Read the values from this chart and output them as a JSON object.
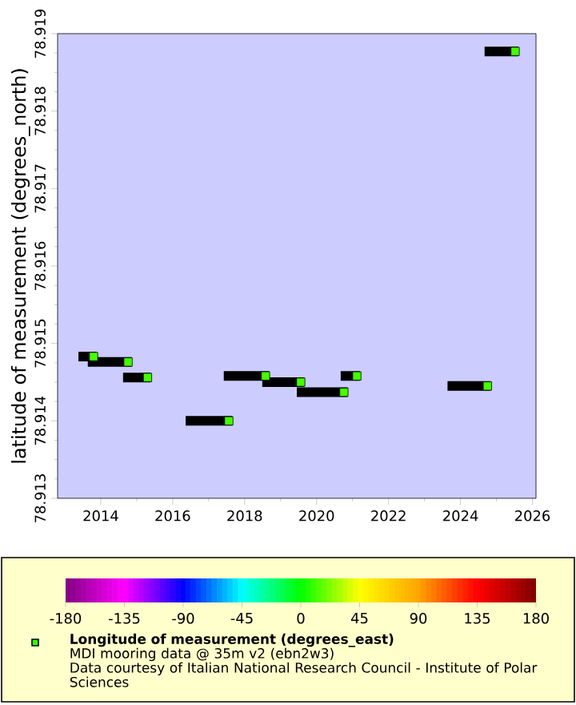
{
  "chart_data": {
    "type": "scatter",
    "ylabel": "latitude of measurement (degrees_north)",
    "clabel": "Longitude of measurement (degrees_east)",
    "annotations": [
      "MDI mooring data @ 35m v2 (ebn2w3)",
      "Data courtesy of Italian National Research Council - Institute of Polar Sciences"
    ],
    "xlim": [
      2012.8,
      2026.1
    ],
    "ylim": [
      78.913,
      78.919
    ],
    "xticks": [
      2014,
      2016,
      2018,
      2020,
      2022,
      2024,
      2026
    ],
    "yticks": [
      78.913,
      78.914,
      78.915,
      78.916,
      78.917,
      78.918,
      78.919
    ],
    "clim": [
      -180,
      180
    ],
    "cticks": [
      -180,
      -135,
      -90,
      -45,
      0,
      45,
      90,
      135,
      180
    ],
    "series": [
      {
        "type": "line",
        "color": "#000000",
        "x": [
          2013.38,
          2013.88
        ],
        "values": [
          78.91483,
          78.91483
        ]
      },
      {
        "type": "line",
        "color": "#000000",
        "x": [
          2013.64,
          2014.86
        ],
        "values": [
          78.91476,
          78.91476
        ]
      },
      {
        "type": "line",
        "color": "#000000",
        "x": [
          2014.62,
          2015.39
        ],
        "values": [
          78.91456,
          78.91456
        ]
      },
      {
        "type": "line",
        "color": "#000000",
        "x": [
          2016.36,
          2017.66
        ],
        "values": [
          78.914,
          78.914
        ]
      },
      {
        "type": "line",
        "color": "#000000",
        "x": [
          2017.42,
          2018.68
        ],
        "values": [
          78.91458,
          78.91458
        ]
      },
      {
        "type": "line",
        "color": "#000000",
        "x": [
          2018.49,
          2019.66
        ],
        "values": [
          78.9145,
          78.9145
        ]
      },
      {
        "type": "line",
        "color": "#000000",
        "x": [
          2019.45,
          2020.86
        ],
        "values": [
          78.91437,
          78.91437
        ]
      },
      {
        "type": "line",
        "color": "#000000",
        "x": [
          2020.67,
          2021.21
        ],
        "values": [
          78.91458,
          78.91458
        ]
      },
      {
        "type": "line",
        "color": "#000000",
        "x": [
          2023.64,
          2024.84
        ],
        "values": [
          78.91445,
          78.91445
        ]
      },
      {
        "type": "line",
        "color": "#000000",
        "x": [
          2024.67,
          2025.61
        ],
        "values": [
          78.91877,
          78.91877
        ]
      },
      {
        "type": "scatter",
        "marker": "square",
        "color": "#33ff00",
        "x": [
          2013.8,
          2014.76,
          2015.3,
          2017.56,
          2018.58,
          2019.56,
          2020.76,
          2021.12,
          2024.75,
          2025.52
        ],
        "values": [
          78.91483,
          78.91476,
          78.91456,
          78.914,
          78.91458,
          78.9145,
          78.91437,
          78.91458,
          78.91445,
          78.91877
        ],
        "cvalues": [
          12,
          12,
          12,
          12,
          12,
          12,
          12,
          12,
          12,
          12
        ]
      }
    ]
  }
}
